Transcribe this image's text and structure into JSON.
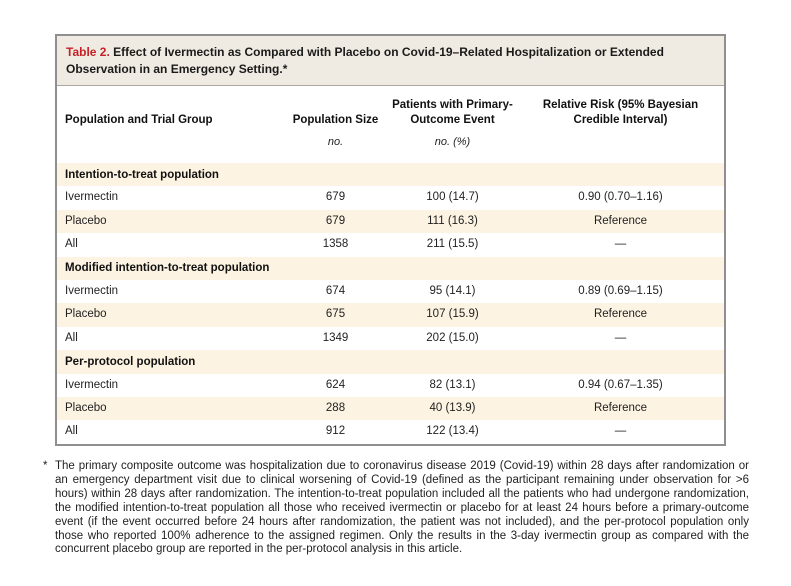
{
  "title": {
    "label": "Table 2.",
    "text": "Effect of Ivermectin as Compared with Placebo on Covid-19–Related Hospitalization or Extended Observation in an Emergency Setting.*"
  },
  "table": {
    "columns": [
      "Population and Trial Group",
      "Population Size",
      "Patients with Primary-Outcome Event",
      "Relative Risk (95% Bayesian Credible Interval)"
    ],
    "units": {
      "population_size": "no.",
      "primary_outcome": "no. (%)"
    },
    "sections": [
      {
        "header": "Intention-to-treat population",
        "rows": [
          [
            "Ivermectin",
            "679",
            "100 (14.7)",
            "0.90 (0.70–1.16)"
          ],
          [
            "Placebo",
            "679",
            "111 (16.3)",
            "Reference"
          ],
          [
            "All",
            "1358",
            "211 (15.5)",
            "—"
          ]
        ]
      },
      {
        "header": "Modified intention-to-treat population",
        "rows": [
          [
            "Ivermectin",
            "674",
            "95 (14.1)",
            "0.89 (0.69–1.15)"
          ],
          [
            "Placebo",
            "675",
            "107 (15.9)",
            "Reference"
          ],
          [
            "All",
            "1349",
            "202 (15.0)",
            "—"
          ]
        ]
      },
      {
        "header": "Per-protocol population",
        "rows": [
          [
            "Ivermectin",
            "624",
            "82 (13.1)",
            "0.94 (0.67–1.35)"
          ],
          [
            "Placebo",
            "288",
            "40 (13.9)",
            "Reference"
          ],
          [
            "All",
            "912",
            "122 (13.4)",
            "—"
          ]
        ]
      }
    ]
  },
  "footnote": {
    "marker": "*",
    "text": "The primary composite outcome was hospitalization due to coronavirus disease 2019 (Covid-19) within 28 days after randomization or an emergency department visit due to clinical worsening of Covid-19 (defined as the participant remaining under observation for >6 hours) within 28 days after randomization. The intention-to-treat population included all the patients who had undergone randomization, the modified intention-to-treat population all those who received ivermectin or placebo for at least 24 hours before a primary-outcome event (if the event occurred before 24 hours after randomization, the patient was not included), and the per-protocol population only those who reported 100% adherence to the assigned regimen. Only the results in the 3-day ivermectin group as compared with the concurrent placebo group are reported in the per-protocol analysis in this article."
  },
  "colors": {
    "accent_red": "#c42127",
    "row_stripe": "#fdf3e2",
    "title_background": "#f0ebe2",
    "card_border": "#8f8f8f"
  }
}
